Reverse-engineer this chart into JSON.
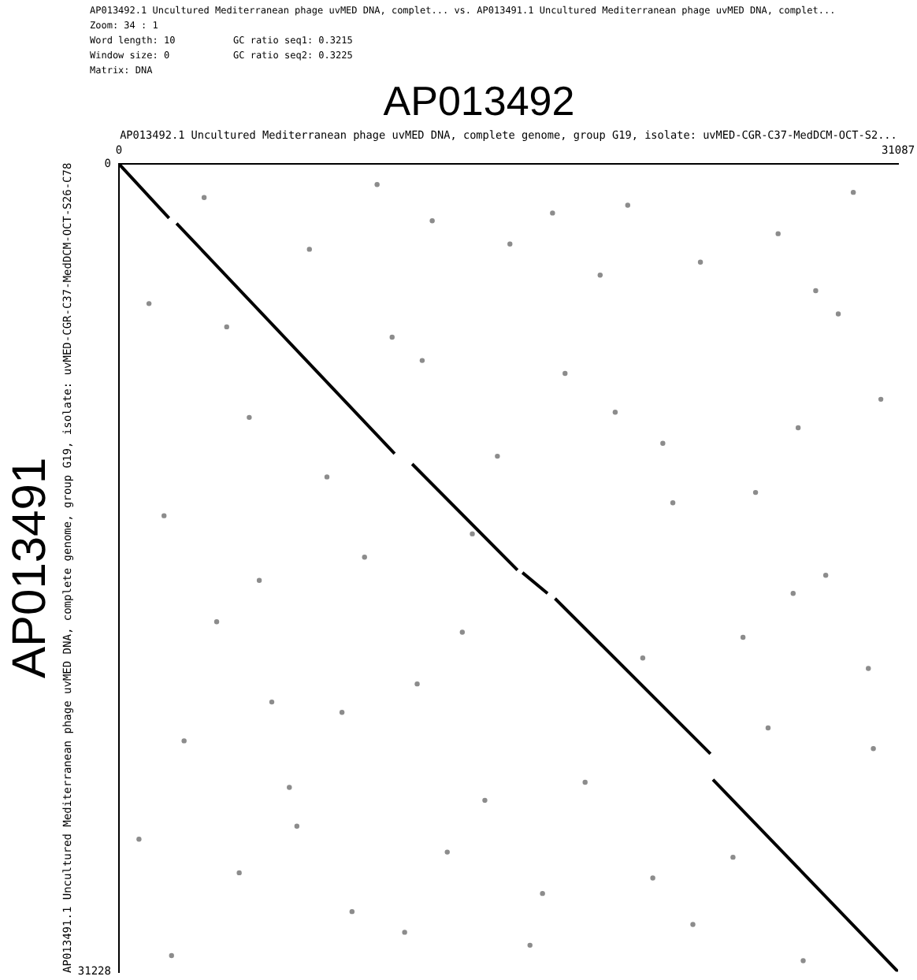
{
  "chart_data": {
    "type": "scatter",
    "title": "AP013492",
    "xlabel": "AP013492.1 Uncultured Mediterranean phage uvMED DNA, complete genome, group G19, isolate: uvMED-CGR-C37-MedDCM-OCT-S2...",
    "ylabel": "AP013491.1 Uncultured Mediterranean phage uvMED DNA, complete genome, group G19, isolate: uvMED-CGR-C37-MedDCM-OCT-S26-C78",
    "annotations": [
      "AP013492.1 Uncultured Mediterranean phage uvMED DNA, complet... vs. AP013491.1 Uncultured Mediterranean phage uvMED DNA, complet...",
      "Zoom: 34 : 1",
      "Word length: 10",
      "Window size: 0",
      "Matrix: DNA",
      "GC ratio seq1: 0.3215",
      "GC ratio seq2: 0.3225",
      "AP013491"
    ],
    "xlim": [
      0,
      31087
    ],
    "ylim": [
      31228,
      0
    ],
    "xticks": [
      0,
      31087
    ],
    "yticks": [
      0,
      31228
    ],
    "grid": false,
    "legend": false,
    "series": [
      {
        "type": "line",
        "color": "#000000",
        "marker": "none",
        "x": [
          0,
          2000,
          null,
          2300,
          11000,
          null,
          11700,
          15900,
          null,
          16100,
          17100,
          null,
          17400,
          23600,
          null,
          23700,
          31087
        ],
        "values": [
          0,
          2100,
          null,
          2300,
          11200,
          null,
          11600,
          15700,
          null,
          15800,
          16600,
          null,
          16800,
          22800,
          null,
          23800,
          31228
        ]
      },
      {
        "color": "#8c8c8c",
        "marker": "circle",
        "x": [
          1200,
          3400,
          5200,
          7600,
          9800,
          12500,
          14600,
          17800,
          20300,
          22900,
          25400,
          27800,
          29900,
          2600,
          4800,
          8300,
          10900,
          13700,
          16400,
          19200,
          21700,
          24500,
          26900,
          29300,
          1800,
          6100,
          9300,
          12100,
          15100,
          18600,
          23200,
          27300,
          30400,
          3900,
          7100,
          11400,
          14100,
          20900,
          25900,
          28700,
          800,
          5600,
          10300,
          16900,
          22100,
          26300,
          30100,
          4300,
          13100,
          19800,
          24900,
          2100,
          8900,
          15600,
          21300,
          28200,
          6800,
          17300,
          11900,
          27100
        ],
        "values": [
          5400,
          1300,
          9800,
          3300,
          15200,
          2200,
          24600,
          8100,
          1600,
          29400,
          12700,
          4900,
          19500,
          22300,
          27400,
          12100,
          6700,
          18100,
          30200,
          4300,
          10800,
          26800,
          16600,
          1100,
          13600,
          20800,
          28900,
          7600,
          11300,
          23900,
          3800,
          30800,
          9100,
          17700,
          25600,
          29700,
          14300,
          19100,
          21800,
          5800,
          26100,
          16100,
          800,
          28200,
          13100,
          2700,
          22600,
          6300,
          26600,
          9600,
          18300,
          30600,
          21200,
          3100,
          27600,
          15900,
          24100,
          1900,
          20100,
          10200
        ]
      }
    ]
  }
}
